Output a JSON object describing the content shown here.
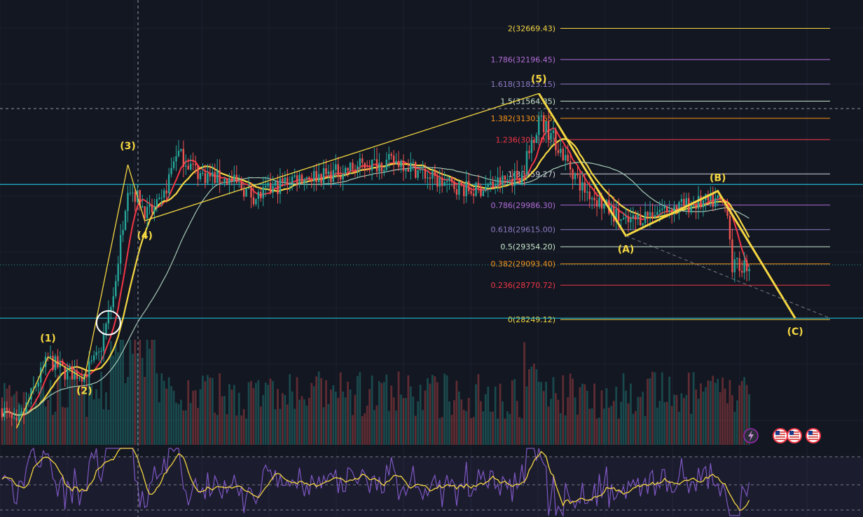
{
  "colors": {
    "background": "#131722",
    "grid": "#1e2230",
    "up": "#26a69a",
    "down": "#ef5350",
    "ma_fast": "#f23645",
    "ma_mid": "#f5d742",
    "ma_slow": "#a5c9b5",
    "wave": "#f5d742",
    "cyan_line": "#22b8cf",
    "oscillator": "#7e57c2",
    "oscillator_signal": "#f5d742"
  },
  "chart_data": {
    "type": "line",
    "title": "",
    "xlabel": "",
    "ylabel": "",
    "ylim": [
      26400,
      33100
    ],
    "fib_levels": [
      {
        "ratio": "2",
        "price": "32669.43",
        "color": "#f5d742"
      },
      {
        "ratio": "1.786",
        "price": "32196.45",
        "color": "#b06cd6"
      },
      {
        "ratio": "1.618",
        "price": "31823.15",
        "color": "#8e7cc3"
      },
      {
        "ratio": "1.5",
        "price": "31564.35",
        "color": "#c8e6c9"
      },
      {
        "ratio": "1.382",
        "price": "31303.65",
        "color": "#f7931a"
      },
      {
        "ratio": "1.236",
        "price": "30980.8",
        "color": "#f23645"
      },
      {
        "ratio": "1",
        "price": "30459.27",
        "color": "#d1d4dc"
      },
      {
        "ratio": "0.786",
        "price": "29986.30",
        "color": "#b06cd6"
      },
      {
        "ratio": "0.618",
        "price": "29615.00",
        "color": "#8e7cc3"
      },
      {
        "ratio": "0.5",
        "price": "29354.20",
        "color": "#c8e6c9"
      },
      {
        "ratio": "0.382",
        "price": "29093.40",
        "color": "#f7931a"
      },
      {
        "ratio": "0.236",
        "price": "28770.72",
        "color": "#f23645"
      },
      {
        "ratio": "0",
        "price": "28249.12",
        "color": "#f5d742"
      }
    ],
    "horizontal_lines": [
      30300,
      28270
    ],
    "wave_labels": [
      "(1)",
      "(2)",
      "(3)",
      "(4)",
      "(5)",
      "(A)",
      "(B)",
      "(C)"
    ],
    "wave_points": [
      {
        "label": "",
        "bar": 6,
        "price": 26600
      },
      {
        "label": "(1)",
        "bar": 19,
        "price": 27680
      },
      {
        "label": "(2)",
        "bar": 34,
        "price": 27350
      },
      {
        "label": "(3)",
        "bar": 52,
        "price": 30600
      },
      {
        "label": "(4)",
        "bar": 59,
        "price": 29750
      },
      {
        "label": "(5)",
        "bar": 222,
        "price": 31680
      },
      {
        "label": "(A)",
        "bar": 258,
        "price": 29520
      },
      {
        "label": "(B)",
        "bar": 296,
        "price": 30200
      },
      {
        "label": "(C)",
        "bar": 328,
        "price": 28270
      }
    ],
    "candles": {
      "count": 310,
      "last_price": 29080
    }
  },
  "indicators": {
    "oscillator_label": "",
    "event_icons": [
      "flash-icon",
      "us-flag-icon",
      "us-flag-icon",
      "us-flag-icon"
    ]
  }
}
